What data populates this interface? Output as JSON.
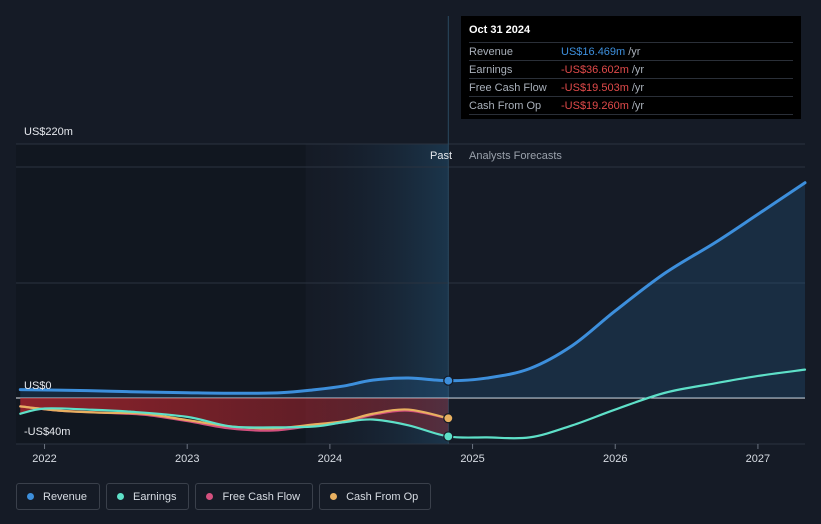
{
  "tooltip": {
    "date": "Oct 31 2024",
    "rows": [
      {
        "label": "Revenue",
        "value": "US$16.469m",
        "unit": "/yr",
        "color": "#3d8fdc"
      },
      {
        "label": "Earnings",
        "value": "-US$36.602m",
        "unit": "/yr",
        "color": "#e04a4a"
      },
      {
        "label": "Free Cash Flow",
        "value": "-US$19.503m",
        "unit": "/yr",
        "color": "#e04a4a"
      },
      {
        "label": "Cash From Op",
        "value": "-US$19.260m",
        "unit": "/yr",
        "color": "#e04a4a"
      }
    ]
  },
  "sections": {
    "past": "Past",
    "forecast": "Analysts Forecasts"
  },
  "legend": [
    {
      "label": "Revenue",
      "color": "#3d8fdc"
    },
    {
      "label": "Earnings",
      "color": "#5ee0c8"
    },
    {
      "label": "Free Cash Flow",
      "color": "#d4507e"
    },
    {
      "label": "Cash From Op",
      "color": "#e8b060"
    }
  ],
  "chart_data": {
    "type": "line",
    "y_tick_labels": [
      "US$220m",
      "US$0",
      "-US$40m"
    ],
    "x_tick_labels": [
      "2022",
      "2023",
      "2024",
      "2025",
      "2026",
      "2027"
    ],
    "ylim": [
      -40,
      220
    ],
    "xlim": [
      2021.8,
      2027.33
    ],
    "past_end": 2024.83,
    "series": [
      {
        "name": "Revenue",
        "color": "#3d8fdc",
        "x": [
          2021.83,
          2022.3,
          2022.6,
          2023.0,
          2023.3,
          2023.65,
          2023.9,
          2024.1,
          2024.3,
          2024.55,
          2024.83,
          2025.1,
          2025.4,
          2025.7,
          2026.0,
          2026.35,
          2026.7,
          2027.0,
          2027.33
        ],
        "y": [
          8,
          7,
          6,
          5,
          4.5,
          5,
          8,
          11.5,
          17,
          19,
          16.5,
          19,
          28,
          50,
          83,
          119,
          148,
          175,
          205
        ]
      },
      {
        "name": "Earnings",
        "color": "#5ee0c8",
        "x": [
          2021.83,
          2022.0,
          2022.3,
          2022.6,
          2023.0,
          2023.3,
          2023.6,
          2023.9,
          2024.1,
          2024.3,
          2024.55,
          2024.83,
          2025.1,
          2025.4,
          2025.7,
          2026.0,
          2026.35,
          2026.7,
          2027.0,
          2027.33
        ],
        "y": [
          -15,
          -10,
          -11,
          -13,
          -18,
          -27,
          -28,
          -27,
          -23,
          -20.5,
          -26,
          -36.6,
          -37.5,
          -37.5,
          -26,
          -11,
          5,
          14,
          21,
          27
        ]
      },
      {
        "name": "Free Cash Flow",
        "color": "#d4507e",
        "x": [
          2021.83,
          2022.1,
          2022.4,
          2022.7,
          2023.0,
          2023.3,
          2023.6,
          2023.9,
          2024.1,
          2024.3,
          2024.55,
          2024.83
        ],
        "y": [
          -8,
          -12,
          -14,
          -16,
          -22,
          -29,
          -31,
          -26,
          -23,
          -16,
          -12,
          -19.5
        ]
      },
      {
        "name": "Cash From Op",
        "color": "#e8b060",
        "x": [
          2021.83,
          2022.1,
          2022.4,
          2022.7,
          2023.0,
          2023.3,
          2023.6,
          2023.9,
          2024.1,
          2024.3,
          2024.55,
          2024.83
        ],
        "y": [
          -8,
          -12,
          -14,
          -15,
          -21,
          -27,
          -29,
          -25,
          -22,
          -15,
          -11,
          -19.3
        ]
      }
    ]
  }
}
